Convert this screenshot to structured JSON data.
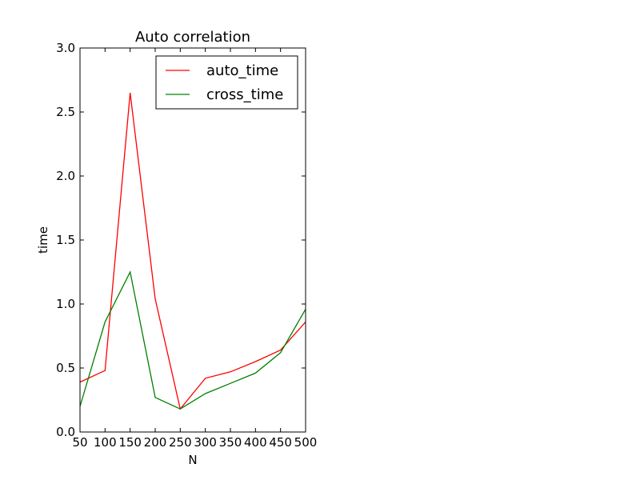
{
  "chart_data": {
    "type": "line",
    "title": "Auto correlation",
    "xlabel": "N",
    "ylabel": "time",
    "x": [
      50,
      100,
      150,
      200,
      250,
      300,
      350,
      400,
      450,
      500
    ],
    "xticks": [
      "50",
      "100",
      "150",
      "200",
      "250",
      "300",
      "350",
      "400",
      "450",
      "500"
    ],
    "xlim": [
      50,
      500
    ],
    "ylim": [
      0.0,
      3.0
    ],
    "yticks": [
      "0.0",
      "0.5",
      "1.0",
      "1.5",
      "2.0",
      "2.5",
      "3.0"
    ],
    "grid": false,
    "legend_position": "top-right",
    "series": [
      {
        "name": "auto_time",
        "color": "#ff0000",
        "values": [
          0.39,
          0.48,
          2.65,
          1.04,
          0.18,
          0.42,
          0.47,
          0.55,
          0.64,
          0.86
        ]
      },
      {
        "name": "cross_time",
        "color": "#008000",
        "values": [
          0.2,
          0.86,
          1.25,
          0.27,
          0.18,
          0.3,
          0.38,
          0.46,
          0.62,
          0.96
        ]
      }
    ]
  }
}
